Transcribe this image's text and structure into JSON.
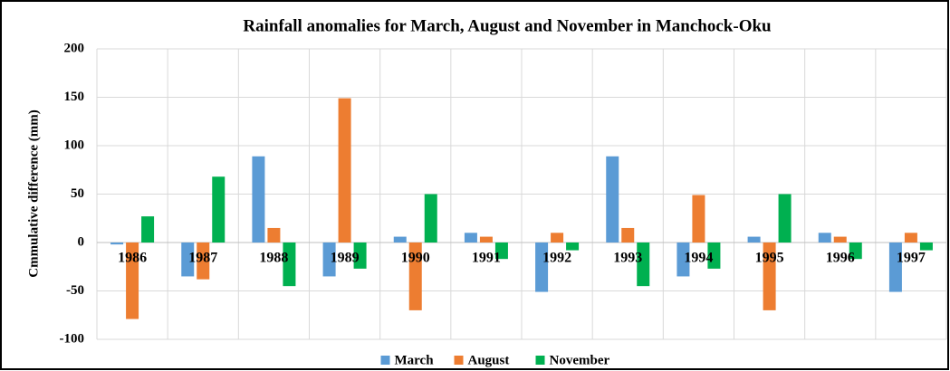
{
  "chart_data": {
    "type": "bar",
    "title": "Rainfall anomalies for March, August and November in Manchock-Oku",
    "y_label": "Cmmulative difference (mm)",
    "categories": [
      "1986",
      "1987",
      "1988",
      "1989",
      "1990",
      "1991",
      "1992",
      "1993",
      "1994",
      "1995",
      "1996",
      "1997"
    ],
    "series": [
      {
        "name": "March",
        "color": "#5b9bd5",
        "values": [
          -2,
          -35,
          89,
          -35,
          6,
          10,
          -51,
          89,
          -35,
          6,
          10,
          -51
        ]
      },
      {
        "name": "August",
        "color": "#ed7d31",
        "values": [
          -79,
          -38,
          15,
          149,
          -70,
          6,
          10,
          15,
          49,
          -70,
          6,
          10
        ]
      },
      {
        "name": "November",
        "color": "#00b050",
        "values": [
          27,
          68,
          -45,
          -27,
          50,
          -17,
          -8,
          -45,
          -27,
          50,
          -17,
          -8
        ]
      }
    ],
    "ylim": [
      -100,
      200
    ],
    "yticks": [
      -100,
      -50,
      0,
      50,
      100,
      150,
      200
    ],
    "grid": true,
    "legend": "bottom"
  }
}
